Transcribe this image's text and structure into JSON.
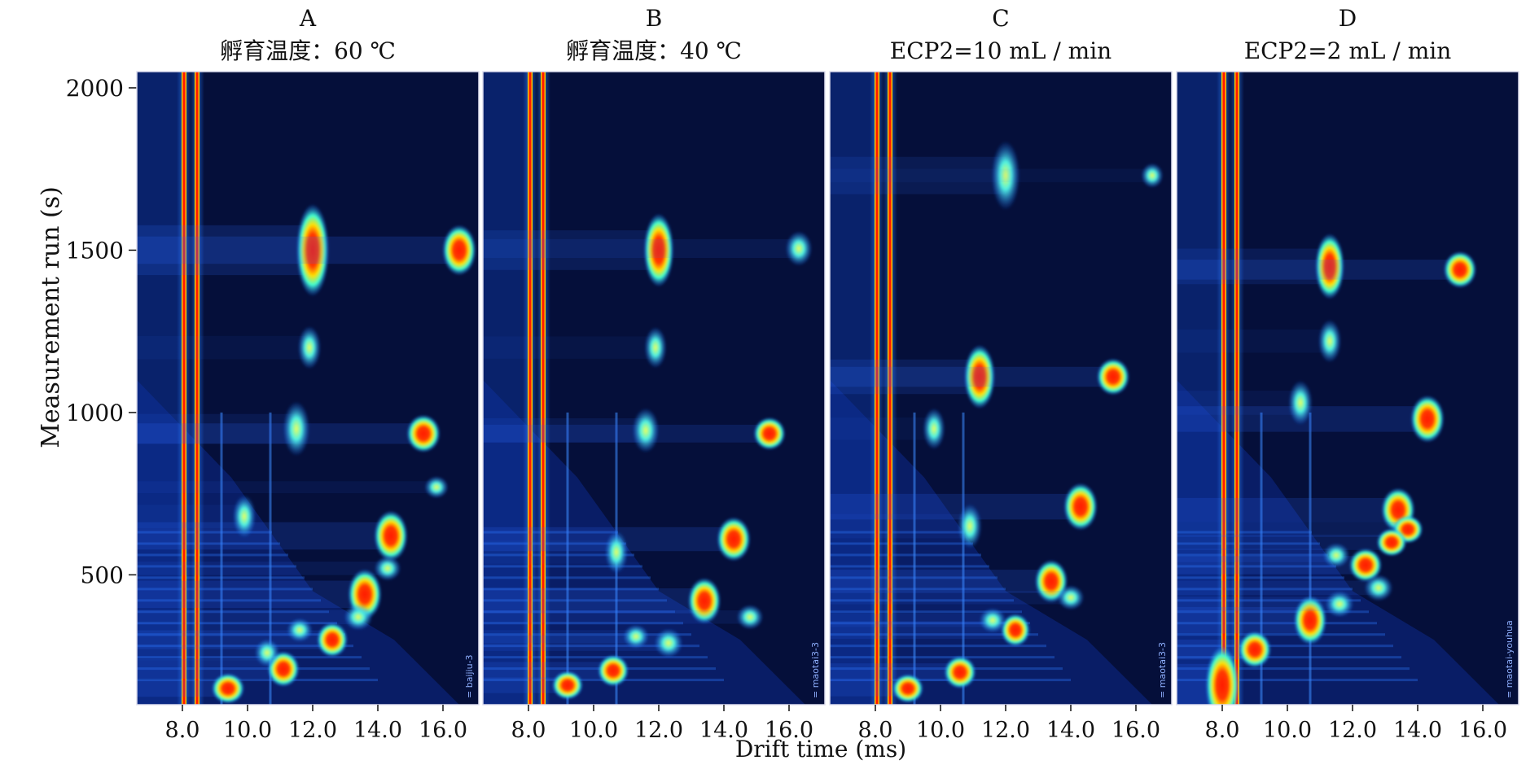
{
  "figure": {
    "ylabel": "Measurement run (s)",
    "xlabel": "Drift time (ms)",
    "ylim": [
      100,
      2050
    ],
    "xlim": [
      6.6,
      17.1
    ],
    "yticks": [
      500,
      1000,
      1500,
      2000
    ],
    "xtick_labels": [
      "8.0",
      "10.0",
      "12.0",
      "14.0",
      "16.0"
    ],
    "colors": {
      "background": "#050f3a",
      "rip": "#ff1a00",
      "peak_core": "#ff2a00"
    }
  },
  "chart_data": [
    {
      "type": "heatmap",
      "panel_label": "A",
      "title": "孵育温度：60 ℃",
      "watermark": "= baijiu-3",
      "peaks": [
        {
          "x": 12.0,
          "y": 1500,
          "i": 0.95,
          "elong": 3.0
        },
        {
          "x": 16.5,
          "y": 1500,
          "i": 1.0,
          "elong": 1.6
        },
        {
          "x": 15.4,
          "y": 935,
          "i": 1.0,
          "elong": 1.2
        },
        {
          "x": 11.5,
          "y": 950,
          "i": 0.6,
          "elong": 2.2
        },
        {
          "x": 14.4,
          "y": 620,
          "i": 1.0,
          "elong": 1.6
        },
        {
          "x": 13.6,
          "y": 440,
          "i": 1.0,
          "elong": 1.6
        },
        {
          "x": 12.6,
          "y": 300,
          "i": 0.85,
          "elong": 1.2
        },
        {
          "x": 11.1,
          "y": 210,
          "i": 0.9,
          "elong": 1.2
        },
        {
          "x": 9.4,
          "y": 150,
          "i": 0.95,
          "elong": 1.0
        },
        {
          "x": 11.9,
          "y": 1200,
          "i": 0.4,
          "elong": 2.0
        },
        {
          "x": 15.8,
          "y": 770,
          "i": 0.45,
          "elong": 1.0
        },
        {
          "x": 14.3,
          "y": 520,
          "i": 0.6,
          "elong": 1.0
        },
        {
          "x": 13.4,
          "y": 370,
          "i": 0.7,
          "elong": 1.0
        },
        {
          "x": 11.6,
          "y": 330,
          "i": 0.55,
          "elong": 1.0
        },
        {
          "x": 10.6,
          "y": 260,
          "i": 0.5,
          "elong": 1.2
        },
        {
          "x": 9.9,
          "y": 680,
          "i": 0.4,
          "elong": 2.0
        }
      ]
    },
    {
      "type": "heatmap",
      "panel_label": "B",
      "title": "孵育温度：40 ℃",
      "watermark": "= maotai3-3",
      "peaks": [
        {
          "x": 12.0,
          "y": 1500,
          "i": 0.8,
          "elong": 2.6
        },
        {
          "x": 16.3,
          "y": 1505,
          "i": 0.6,
          "elong": 1.4
        },
        {
          "x": 15.4,
          "y": 935,
          "i": 0.9,
          "elong": 1.1
        },
        {
          "x": 11.6,
          "y": 945,
          "i": 0.6,
          "elong": 1.8
        },
        {
          "x": 14.3,
          "y": 610,
          "i": 1.0,
          "elong": 1.4
        },
        {
          "x": 13.4,
          "y": 420,
          "i": 0.95,
          "elong": 1.5
        },
        {
          "x": 12.3,
          "y": 290,
          "i": 0.7,
          "elong": 1.1
        },
        {
          "x": 10.6,
          "y": 205,
          "i": 0.85,
          "elong": 1.1
        },
        {
          "x": 9.2,
          "y": 160,
          "i": 0.85,
          "elong": 1.0
        },
        {
          "x": 11.9,
          "y": 1200,
          "i": 0.35,
          "elong": 2.0
        },
        {
          "x": 14.8,
          "y": 370,
          "i": 0.6,
          "elong": 1.0
        },
        {
          "x": 11.3,
          "y": 310,
          "i": 0.55,
          "elong": 1.0
        },
        {
          "x": 10.7,
          "y": 570,
          "i": 0.4,
          "elong": 2.0
        }
      ]
    },
    {
      "type": "heatmap",
      "panel_label": "C",
      "title": "ECP2=10 mL / min",
      "watermark": "= maotai3-3",
      "peaks": [
        {
          "x": 12.0,
          "y": 1730,
          "i": 0.7,
          "elong": 2.6
        },
        {
          "x": 16.5,
          "y": 1730,
          "i": 0.35,
          "elong": 1.2
        },
        {
          "x": 11.2,
          "y": 1110,
          "i": 0.85,
          "elong": 2.2
        },
        {
          "x": 15.3,
          "y": 1110,
          "i": 0.95,
          "elong": 1.2
        },
        {
          "x": 14.3,
          "y": 710,
          "i": 1.0,
          "elong": 1.5
        },
        {
          "x": 13.4,
          "y": 480,
          "i": 0.95,
          "elong": 1.4
        },
        {
          "x": 12.3,
          "y": 330,
          "i": 0.75,
          "elong": 1.2
        },
        {
          "x": 10.6,
          "y": 200,
          "i": 0.9,
          "elong": 1.1
        },
        {
          "x": 9.0,
          "y": 150,
          "i": 0.85,
          "elong": 1.0
        },
        {
          "x": 11.6,
          "y": 360,
          "i": 0.6,
          "elong": 1.0
        },
        {
          "x": 14.0,
          "y": 430,
          "i": 0.6,
          "elong": 1.0
        },
        {
          "x": 10.9,
          "y": 650,
          "i": 0.45,
          "elong": 2.0
        },
        {
          "x": 9.8,
          "y": 950,
          "i": 0.35,
          "elong": 2.0
        }
      ]
    },
    {
      "type": "heatmap",
      "panel_label": "D",
      "title": "ECP2=2 mL / min",
      "watermark": "= maotai-youhua",
      "peaks": [
        {
          "x": 11.3,
          "y": 1450,
          "i": 0.75,
          "elong": 2.4
        },
        {
          "x": 15.3,
          "y": 1440,
          "i": 0.95,
          "elong": 1.2
        },
        {
          "x": 14.3,
          "y": 980,
          "i": 1.0,
          "elong": 1.5
        },
        {
          "x": 13.4,
          "y": 700,
          "i": 1.0,
          "elong": 1.4
        },
        {
          "x": 13.7,
          "y": 640,
          "i": 0.8,
          "elong": 1.0
        },
        {
          "x": 12.4,
          "y": 530,
          "i": 0.95,
          "elong": 1.1
        },
        {
          "x": 10.7,
          "y": 360,
          "i": 0.95,
          "elong": 1.6
        },
        {
          "x": 9.0,
          "y": 270,
          "i": 0.95,
          "elong": 1.2
        },
        {
          "x": 13.2,
          "y": 600,
          "i": 0.8,
          "elong": 1.0
        },
        {
          "x": 11.5,
          "y": 560,
          "i": 0.6,
          "elong": 1.0
        },
        {
          "x": 12.8,
          "y": 460,
          "i": 0.7,
          "elong": 1.0
        },
        {
          "x": 11.6,
          "y": 410,
          "i": 0.7,
          "elong": 1.0
        },
        {
          "x": 11.3,
          "y": 1220,
          "i": 0.4,
          "elong": 2.0
        },
        {
          "x": 10.4,
          "y": 1030,
          "i": 0.45,
          "elong": 2.0
        },
        {
          "x": 8.0,
          "y": 160,
          "i": 1.0,
          "elong": 2.5
        }
      ]
    }
  ]
}
